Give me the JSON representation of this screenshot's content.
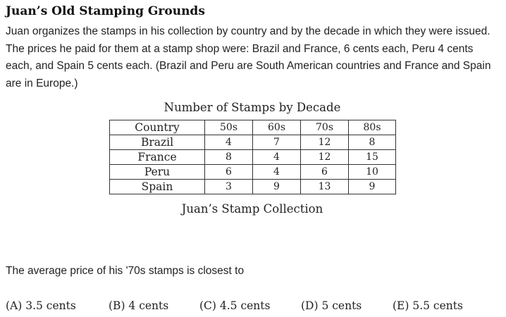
{
  "title": "Juan’s Old Stamping Grounds",
  "intro": "Juan organizes the stamps in his collection by country and by the decade in which they were issued. The prices he paid for them at a stamp shop were: Brazil and France, 6 cents each, Peru 4 cents each, and Spain 5 cents each. (Brazil and Peru are South American countries and France and Spain are in Europe.)",
  "table": {
    "caption_top": "Number of Stamps by Decade",
    "caption_bottom": "Juan’s Stamp Collection",
    "headers": [
      "Country",
      "50s",
      "60s",
      "70s",
      "80s"
    ],
    "rows": [
      [
        "Brazil",
        "4",
        "7",
        "12",
        "8"
      ],
      [
        "France",
        "8",
        "4",
        "12",
        "15"
      ],
      [
        "Peru",
        "6",
        "4",
        "6",
        "10"
      ],
      [
        "Spain",
        "3",
        "9",
        "13",
        "9"
      ]
    ]
  },
  "question": "The average price of his '70s stamps is closest to",
  "choices": [
    "(A) 3.5 cents",
    "(B) 4 cents",
    "(C) 4.5 cents",
    "(D) 5 cents",
    "(E) 5.5 cents"
  ]
}
